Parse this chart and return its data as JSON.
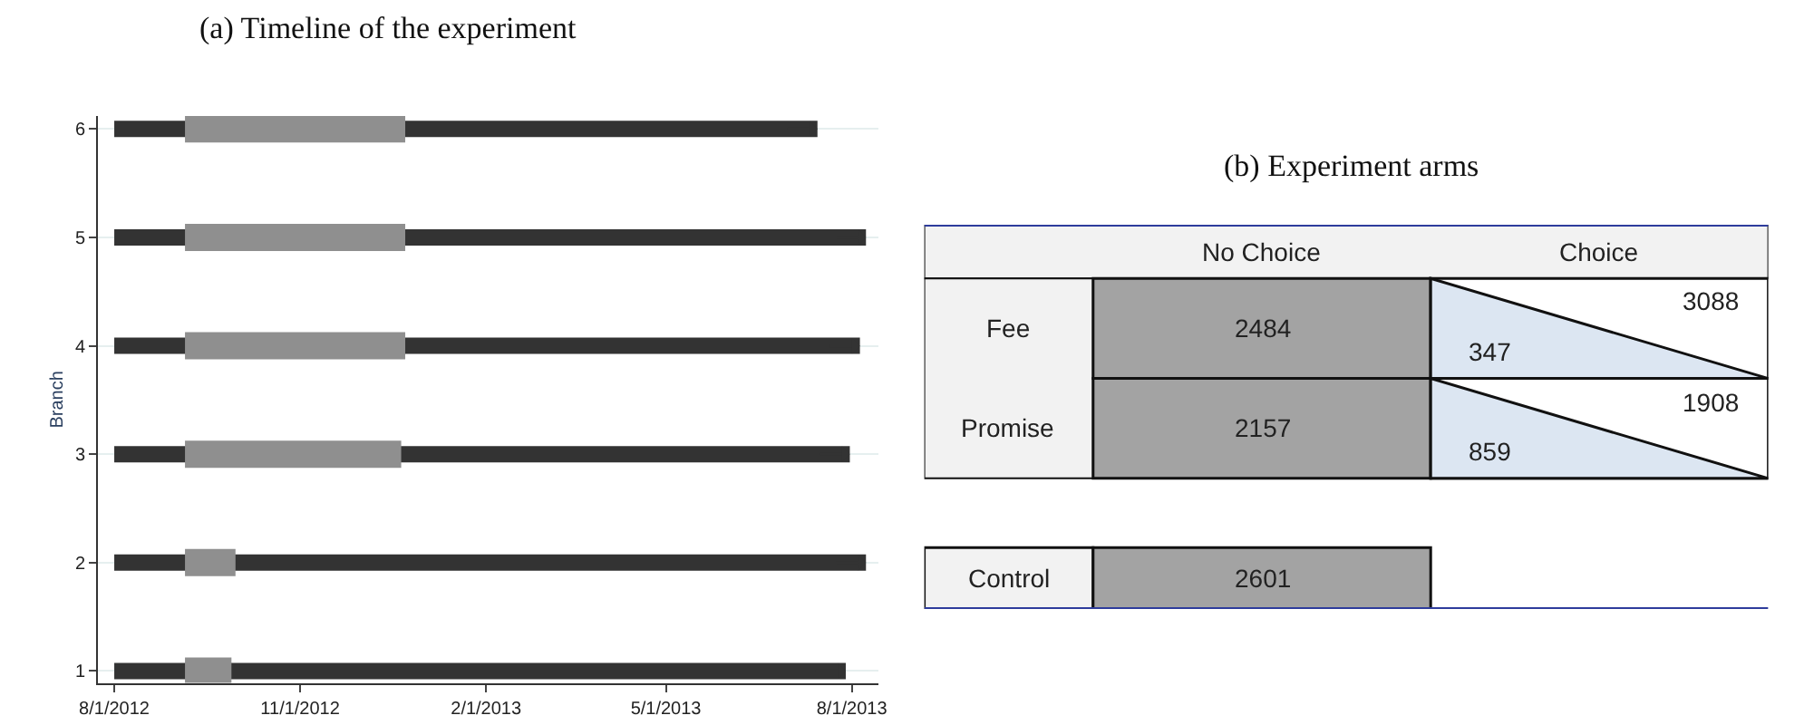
{
  "chart_data": [
    {
      "type": "line",
      "title": "(a) Timeline of the experiment",
      "ylabel": "Branch",
      "series": [
        {
          "color": "#333333",
          "x": [
            "2012-08-01",
            "2013-07-29"
          ],
          "values": [
            1,
            1
          ]
        },
        {
          "color": "#333333",
          "x": [
            "2012-08-01",
            "2013-08-08"
          ],
          "values": [
            2,
            2
          ]
        },
        {
          "color": "#333333",
          "x": [
            "2012-08-01",
            "2013-07-31"
          ],
          "values": [
            3,
            3
          ]
        },
        {
          "color": "#333333",
          "x": [
            "2012-08-01",
            "2013-08-05"
          ],
          "values": [
            4,
            4
          ]
        },
        {
          "color": "#333333",
          "x": [
            "2012-08-01",
            "2013-08-08"
          ],
          "values": [
            5,
            5
          ]
        },
        {
          "color": "#333333",
          "x": [
            "2012-08-01",
            "2013-07-15"
          ],
          "values": [
            6,
            6
          ]
        },
        {
          "color": "#8f8f8f",
          "x": [
            "2012-09-05",
            "2012-09-28"
          ],
          "values": [
            1,
            1
          ]
        },
        {
          "color": "#8f8f8f",
          "x": [
            "2012-09-05",
            "2012-09-30"
          ],
          "values": [
            2,
            2
          ]
        },
        {
          "color": "#8f8f8f",
          "x": [
            "2012-09-05",
            "2012-12-21"
          ],
          "values": [
            3,
            3
          ]
        },
        {
          "color": "#8f8f8f",
          "x": [
            "2012-09-05",
            "2012-12-23"
          ],
          "values": [
            4,
            4
          ]
        },
        {
          "color": "#8f8f8f",
          "x": [
            "2012-09-05",
            "2012-12-23"
          ],
          "values": [
            5,
            5
          ]
        },
        {
          "color": "#8f8f8f",
          "x": [
            "2012-09-05",
            "2012-12-23"
          ],
          "values": [
            6,
            6
          ]
        }
      ],
      "line_style": "solid",
      "xlim": [
        "2012-07-24",
        "2013-08-14"
      ],
      "xticks": [
        {
          "value": "2012-08-01",
          "label": "8/1/2012"
        },
        {
          "value": "2012-11-01",
          "label": "11/1/2012"
        },
        {
          "value": "2013-02-01",
          "label": "2/1/2013"
        },
        {
          "value": "2013-05-01",
          "label": "5/1/2013"
        },
        {
          "value": "2013-08-01",
          "label": "8/1/2013"
        }
      ],
      "ylim": [
        0.89,
        6.12
      ],
      "yticks": [
        1,
        2,
        3,
        4,
        5,
        6
      ],
      "grid": "y"
    },
    {
      "type": "other",
      "title": "(b) Experiment arms",
      "annotations": [
        "No Choice",
        "Choice",
        "Fee",
        "2484",
        "347",
        "3088",
        "Promise",
        "2157",
        "859",
        "1908",
        "Control",
        "2601"
      ]
    }
  ]
}
